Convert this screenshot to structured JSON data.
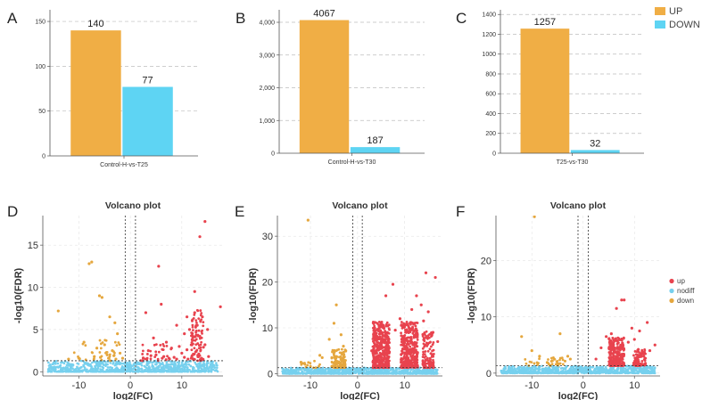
{
  "colors": {
    "up_bar": "#F0AE45",
    "down_bar": "#5ED4F3",
    "volcano_up": "#E8434E",
    "volcano_nodiff": "#76D0EE",
    "volcano_down": "#E5A73E"
  },
  "panel_letters": [
    "A",
    "B",
    "C",
    "D",
    "E",
    "F"
  ],
  "bar_legend": {
    "up": "UP",
    "down": "DOWN"
  },
  "volcano_legend": {
    "up": "up",
    "nodiff": "nodiff",
    "down": "down"
  },
  "chart_data": [
    {
      "type": "bar",
      "panel": "A",
      "categories": [
        "UP",
        "DOWN"
      ],
      "values": [
        140,
        77
      ],
      "data_labels": [
        "140",
        "77"
      ],
      "xlabel": "Control-H-vs-T25",
      "ylim": [
        0,
        160
      ],
      "yticks": [
        0,
        50,
        100,
        150
      ],
      "ytick_labels": [
        "0",
        "50",
        "100",
        "150"
      ]
    },
    {
      "type": "bar",
      "panel": "B",
      "categories": [
        "UP",
        "DOWN"
      ],
      "values": [
        4067,
        187
      ],
      "data_labels": [
        "4067",
        "187"
      ],
      "xlabel": "Control-H-vs-T30",
      "ylim": [
        0,
        4300
      ],
      "yticks": [
        0,
        1000,
        2000,
        3000,
        4000
      ],
      "ytick_labels": [
        "0",
        "1,000",
        "2,000",
        "3,000",
        "4,000"
      ]
    },
    {
      "type": "bar",
      "panel": "C",
      "categories": [
        "UP",
        "DOWN"
      ],
      "values": [
        1257,
        32
      ],
      "data_labels": [
        "1257",
        "32"
      ],
      "xlabel": "T25-vs-T30",
      "ylim": [
        0,
        1420
      ],
      "yticks": [
        0,
        200,
        400,
        600,
        800,
        1000,
        1200,
        1400
      ],
      "ytick_labels": [
        "0",
        "200",
        "400",
        "600",
        "800",
        "1000",
        "1200",
        "1400"
      ]
    },
    {
      "type": "scatter",
      "panel": "D",
      "title": "Volcano plot",
      "xlabel": "log2(FC)",
      "ylabel": "-log10(FDR)",
      "xlim": [
        -17,
        18
      ],
      "ylim": [
        -0.5,
        18.5
      ],
      "xticks": [
        -10,
        0,
        10
      ],
      "xtick_labels": [
        "-10",
        "0",
        "10"
      ],
      "yticks": [
        0,
        5,
        10,
        15
      ],
      "ytick_labels": [
        "0",
        "5",
        "10",
        "15"
      ],
      "fc_threshold": 1,
      "fdr_line": 1.3,
      "series": [
        {
          "name": "up",
          "x": [
            14.5,
            13.5,
            5.5,
            17.5,
            12.5,
            3,
            6,
            11,
            9,
            10.5,
            12.5,
            14,
            4.5,
            7,
            9.5,
            11.5,
            13,
            15,
            3.5,
            8,
            10,
            12,
            14.5,
            5,
            6.5,
            9,
            13.5,
            11,
            12.8,
            14.2,
            2.5,
            4,
            7.5,
            10.5,
            12,
            13.3,
            15.2,
            3.2,
            6.2,
            8.5,
            11.2,
            13.8
          ],
          "y": [
            17.8,
            16,
            12.5,
            7.7,
            9.5,
            7,
            8,
            6.5,
            5.5,
            4.5,
            7,
            6.5,
            4,
            3.5,
            3,
            5,
            5.5,
            5,
            2.5,
            2.8,
            2.2,
            3.8,
            3.2,
            2,
            1.8,
            1.5,
            4.2,
            2.6,
            2.4,
            2.9,
            1.6,
            1.9,
            1.6,
            1.7,
            1.9,
            2.1,
            1.8,
            1.5,
            1.6,
            1.7,
            1.5,
            1.6
          ]
        },
        {
          "name": "down",
          "x": [
            -7.5,
            -8,
            -6,
            -5.5,
            -14,
            -4,
            -3,
            -9,
            -2.5,
            -5,
            -6.5,
            -3.5,
            -2,
            -4.5,
            -7,
            -10,
            -12,
            -1.5,
            -3.2,
            -5.8,
            -2.8,
            -4.2
          ],
          "y": [
            13,
            12.8,
            9,
            8.8,
            7.2,
            6.5,
            5.8,
            3.5,
            4.5,
            3.2,
            2.8,
            2.5,
            2.2,
            2,
            1.8,
            1.6,
            1.5,
            1.6,
            1.9,
            1.7,
            1.5,
            1.6
          ]
        }
      ]
    },
    {
      "type": "scatter",
      "panel": "E",
      "title": "Volcano plot",
      "xlabel": "log2(FC)",
      "ylabel": "-log10(FDR)",
      "xlim": [
        -17,
        18
      ],
      "ylim": [
        -0.5,
        34.5
      ],
      "xticks": [
        -10,
        0,
        10
      ],
      "xtick_labels": [
        "-10",
        "0",
        "10"
      ],
      "yticks": [
        0,
        10,
        20,
        30
      ],
      "ytick_labels": [
        "0",
        "10",
        "20",
        "30"
      ],
      "fc_threshold": 1,
      "fdr_line": 1.3,
      "series": [
        {
          "name": "up",
          "x": [
            14.5,
            16.5,
            12.5,
            7.5,
            6,
            13.5,
            11.5,
            15,
            9,
            5,
            10,
            14,
            16,
            8,
            12,
            3,
            4,
            17
          ],
          "y": [
            22,
            21,
            17,
            19.5,
            17,
            15,
            14,
            13.5,
            12,
            11,
            10.5,
            11.5,
            9,
            9.5,
            8,
            5,
            6,
            7
          ]
        },
        {
          "name": "down",
          "x": [
            -10.5,
            -4.5,
            -5,
            -6,
            -3.5,
            -3,
            -7.5,
            -8,
            -2.5,
            -12
          ],
          "y": [
            33.5,
            15,
            11,
            7.5,
            8.5,
            6,
            3.5,
            4,
            5,
            2.5
          ]
        }
      ]
    },
    {
      "type": "scatter",
      "panel": "F",
      "title": "Volcano plot",
      "xlabel": "log2(FC)",
      "ylabel": "-log10(FDR)",
      "xlim": [
        -17,
        15
      ],
      "ylim": [
        -0.5,
        28
      ],
      "xticks": [
        -10,
        0,
        10
      ],
      "xtick_labels": [
        "-10",
        "0",
        "10"
      ],
      "yticks": [
        0,
        10,
        20
      ],
      "ytick_labels": [
        "0",
        "10",
        "20"
      ],
      "fc_threshold": 1,
      "fdr_line": 1.3,
      "series": [
        {
          "name": "up",
          "x": [
            7.5,
            8,
            6.5,
            9.5,
            11,
            12.5,
            14,
            5.5,
            4.5,
            10,
            13,
            3.5,
            8.8,
            6,
            7,
            11.8,
            2.5
          ],
          "y": [
            13,
            13,
            11.5,
            8,
            7.5,
            9,
            5,
            7,
            6.5,
            6,
            4,
            4.5,
            5.5,
            4,
            3.5,
            3,
            2.5
          ]
        },
        {
          "name": "down",
          "x": [
            -9.5,
            -12,
            -10,
            -8.5,
            -4.5,
            -3,
            -2.5,
            -6,
            -7,
            -5
          ],
          "y": [
            27.8,
            6.5,
            4,
            3,
            7,
            3,
            2.5,
            2.2,
            1.9,
            1.7
          ]
        }
      ]
    }
  ]
}
